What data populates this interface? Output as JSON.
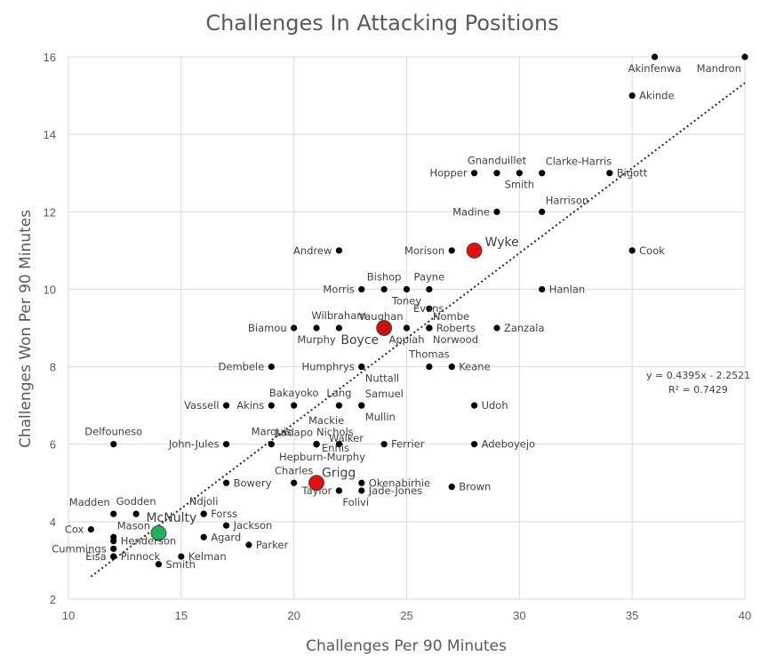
{
  "chart_data": {
    "type": "scatter",
    "title": "Challenges In Attacking Positions",
    "xlabel": "Challenges Per 90 Minutes",
    "ylabel": "Challenges Won Per 90 Minutes",
    "xlim": [
      10,
      40
    ],
    "ylim": [
      2,
      16
    ],
    "x_ticks": [
      10,
      15,
      20,
      25,
      30,
      35,
      40
    ],
    "y_ticks": [
      2,
      4,
      6,
      8,
      10,
      12,
      14,
      16
    ],
    "grid": true,
    "colors": {
      "point": "#000000",
      "highlight_red": "#e01010",
      "highlight_green": "#22b060",
      "grid": "#d9d9d9",
      "trendline": "#262626"
    },
    "trendline": {
      "slope": 0.4395,
      "intercept": -2.2521,
      "x_range": [
        11,
        40
      ],
      "equation": "y = 0.4395x - 2.2521",
      "r2": "R² = 0.7429"
    },
    "points": [
      {
        "name": "Akinfenwa",
        "x": 36,
        "y": 16,
        "label_pos": "below"
      },
      {
        "name": "Mandron",
        "x": 40,
        "y": 16,
        "label_pos": "below-left"
      },
      {
        "name": "Akinde",
        "x": 35,
        "y": 15,
        "label_pos": "right"
      },
      {
        "name": "Gnanduillet",
        "x": 29,
        "y": 13,
        "label_pos": "above"
      },
      {
        "name": "Hopper",
        "x": 28,
        "y": 13,
        "label_pos": "left"
      },
      {
        "name": "Smith",
        "x": 30,
        "y": 13,
        "label_pos": "below"
      },
      {
        "name": "Clarke-Harris",
        "x": 31,
        "y": 13,
        "label_pos": "above-right"
      },
      {
        "name": "Bigott",
        "x": 34,
        "y": 13,
        "label_pos": "right"
      },
      {
        "name": "Madine",
        "x": 29,
        "y": 12,
        "label_pos": "left"
      },
      {
        "name": "Harrison",
        "x": 31,
        "y": 12,
        "label_pos": "above-right"
      },
      {
        "name": "Andrew",
        "x": 22,
        "y": 11,
        "label_pos": "left"
      },
      {
        "name": "Morison",
        "x": 27,
        "y": 11,
        "label_pos": "left"
      },
      {
        "name": "Cook",
        "x": 35,
        "y": 11,
        "label_pos": "right"
      },
      {
        "name": "Morris",
        "x": 23,
        "y": 10,
        "label_pos": "left"
      },
      {
        "name": "Bishop",
        "x": 24,
        "y": 10,
        "label_pos": "above"
      },
      {
        "name": "Toney",
        "x": 25,
        "y": 10,
        "label_pos": "below"
      },
      {
        "name": "Payne",
        "x": 26,
        "y": 10,
        "label_pos": "above"
      },
      {
        "name": "Hanlan",
        "x": 31,
        "y": 10,
        "label_pos": "right"
      },
      {
        "name": "Biamou",
        "x": 20,
        "y": 9,
        "label_pos": "left"
      },
      {
        "name": "Wilbraham",
        "x": 22,
        "y": 9,
        "label_pos": "above"
      },
      {
        "name": "Murphy",
        "x": 21,
        "y": 9,
        "label_pos": "below"
      },
      {
        "name": "Vaughan",
        "x": 25,
        "y": 9,
        "label_pos": "above-left"
      },
      {
        "name": "Evans",
        "x": 26,
        "y": 9.5,
        "label_pos": "none"
      },
      {
        "name": "Nombe",
        "x": 26,
        "y": 9,
        "label_pos": "above-right"
      },
      {
        "name": "Roberts",
        "x": 26,
        "y": 9,
        "label_pos": "right"
      },
      {
        "name": "Appiah",
        "x": 25,
        "y": 9,
        "label_pos": "below"
      },
      {
        "name": "Norwood",
        "x": 26,
        "y": 9,
        "label_pos": "below-right"
      },
      {
        "name": "Zanzala",
        "x": 29,
        "y": 9,
        "label_pos": "right"
      },
      {
        "name": "Dembele",
        "x": 19,
        "y": 8,
        "label_pos": "left"
      },
      {
        "name": "Humphrys",
        "x": 23,
        "y": 8,
        "label_pos": "left"
      },
      {
        "name": "Nuttall",
        "x": 23,
        "y": 8,
        "label_pos": "below-right"
      },
      {
        "name": "Thomas",
        "x": 26,
        "y": 8,
        "label_pos": "above"
      },
      {
        "name": "Keane",
        "x": 27,
        "y": 8,
        "label_pos": "right"
      },
      {
        "name": "Vassell",
        "x": 17,
        "y": 7,
        "label_pos": "left"
      },
      {
        "name": "Akins",
        "x": 19,
        "y": 7,
        "label_pos": "left"
      },
      {
        "name": "Bakayoko",
        "x": 20,
        "y": 7,
        "label_pos": "above"
      },
      {
        "name": "Lang",
        "x": 22,
        "y": 7,
        "label_pos": "above"
      },
      {
        "name": "Samuel",
        "x": 23,
        "y": 7,
        "label_pos": "above-right"
      },
      {
        "name": "Mullin",
        "x": 23,
        "y": 7,
        "label_pos": "below-right"
      },
      {
        "name": "Udoh",
        "x": 28,
        "y": 7,
        "label_pos": "right"
      },
      {
        "name": "Delfouneso",
        "x": 12,
        "y": 6,
        "label_pos": "above"
      },
      {
        "name": "John-Jules",
        "x": 17,
        "y": 6,
        "label_pos": "left"
      },
      {
        "name": "Marquis",
        "x": 19,
        "y": 6,
        "label_pos": "above"
      },
      {
        "name": "Ladapo",
        "x": 21,
        "y": 6,
        "label_pos": "above-left"
      },
      {
        "name": "Mackie",
        "x": 21,
        "y": 6,
        "label_pos": "none"
      },
      {
        "name": "Nichols",
        "x": 21,
        "y": 6,
        "label_pos": "none"
      },
      {
        "name": "Walker",
        "x": 22,
        "y": 6,
        "label_pos": "none"
      },
      {
        "name": "Ennis",
        "x": 21,
        "y": 6,
        "label_pos": "none"
      },
      {
        "name": "Hepburn-Murphy",
        "x": 21,
        "y": 6,
        "label_pos": "none"
      },
      {
        "name": "Ferrier",
        "x": 24,
        "y": 6,
        "label_pos": "right"
      },
      {
        "name": "Adeboyejo",
        "x": 28,
        "y": 6,
        "label_pos": "right"
      },
      {
        "name": "Bowery",
        "x": 17,
        "y": 5,
        "label_pos": "right"
      },
      {
        "name": "Charles",
        "x": 20,
        "y": 5,
        "label_pos": "above"
      },
      {
        "name": "Okenabirhie",
        "x": 23,
        "y": 5,
        "label_pos": "right"
      },
      {
        "name": "Jade-Jones",
        "x": 23,
        "y": 4.8,
        "label_pos": "right"
      },
      {
        "name": "Taylor",
        "x": 22,
        "y": 4.8,
        "label_pos": "left"
      },
      {
        "name": "Folivi",
        "x": 22,
        "y": 4.8,
        "label_pos": "below-right"
      },
      {
        "name": "Brown",
        "x": 27,
        "y": 4.9,
        "label_pos": "right"
      },
      {
        "name": "Madden",
        "x": 12,
        "y": 4.2,
        "label_pos": "above-left"
      },
      {
        "name": "Godden",
        "x": 13,
        "y": 4.2,
        "label_pos": "above"
      },
      {
        "name": "Ndjoli",
        "x": 16,
        "y": 4.2,
        "label_pos": "above"
      },
      {
        "name": "Forss",
        "x": 16,
        "y": 4.2,
        "label_pos": "right"
      },
      {
        "name": "Cox",
        "x": 11,
        "y": 3.8,
        "label_pos": "left"
      },
      {
        "name": "Mason",
        "x": 12,
        "y": 3.6,
        "label_pos": "above-right"
      },
      {
        "name": "Henderson",
        "x": 12,
        "y": 3.5,
        "label_pos": "right"
      },
      {
        "name": "Jackson",
        "x": 17,
        "y": 3.9,
        "label_pos": "right"
      },
      {
        "name": "Agard",
        "x": 16,
        "y": 3.6,
        "label_pos": "right"
      },
      {
        "name": "Cummings",
        "x": 12,
        "y": 3.3,
        "label_pos": "left"
      },
      {
        "name": "Parker",
        "x": 18,
        "y": 3.4,
        "label_pos": "right"
      },
      {
        "name": "Eisa",
        "x": 12,
        "y": 3.1,
        "label_pos": "left"
      },
      {
        "name": "Pinnock",
        "x": 12,
        "y": 3.1,
        "label_pos": "right"
      },
      {
        "name": "Kelman",
        "x": 15,
        "y": 3.1,
        "label_pos": "right"
      },
      {
        "name": "Smith",
        "x": 14,
        "y": 2.9,
        "label_pos": "right"
      }
    ],
    "highlights": [
      {
        "name": "Wyke",
        "x": 28,
        "y": 11,
        "color": "#e01010"
      },
      {
        "name": "Boyce",
        "x": 24,
        "y": 9,
        "color": "#c81010"
      },
      {
        "name": "Grigg",
        "x": 21,
        "y": 5,
        "color": "#e01010"
      },
      {
        "name": "McNulty",
        "x": 14,
        "y": 3.7,
        "color": "#22b060"
      }
    ]
  }
}
